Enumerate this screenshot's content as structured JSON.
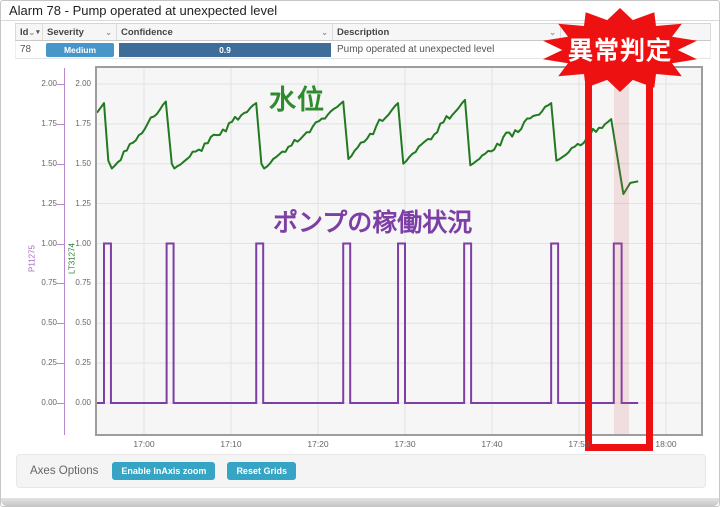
{
  "window": {
    "title": "Alarm 78 - Pump operated at unexpected level"
  },
  "table": {
    "columns": {
      "id": "Id",
      "severity": "Severity",
      "confidence": "Confidence",
      "description": "Description"
    },
    "row": {
      "id": "78",
      "severity": "Medium",
      "confidence": "0.9",
      "description": "Pump operated at unexpected level"
    },
    "severity_color": "#4796ca",
    "confidence_color": "#3e6d9a"
  },
  "badge": {
    "label": "異常判定",
    "color": "#ee1111",
    "text_color": "#ffffff"
  },
  "annotations": {
    "water_level": "水位",
    "pump_status": "ポンプの稼働状況"
  },
  "footer": {
    "label": "Axes Options",
    "buttons": {
      "inaxis_zoom": "Enable InAxis zoom",
      "reset_grids": "Reset Grids"
    },
    "button_color": "#35a4c5"
  },
  "chart_data": {
    "type": "line",
    "x_axis": {
      "tick_labels": [
        "17:00",
        "17:10",
        "17:20",
        "17:30",
        "17:40",
        "17:50",
        "18:00"
      ],
      "tick_interval_minutes": 10,
      "range_minutes_from_1700": [
        -5.4,
        64
      ]
    },
    "y_axes": [
      {
        "tag": "P11275",
        "color": "#a86bc6",
        "tick_labels": [
          "2.00",
          "1.75",
          "1.50",
          "1.25",
          "1.00",
          "0.75",
          "0.50",
          "0.25",
          "0.00"
        ],
        "range": [
          0,
          2.1
        ]
      },
      {
        "tag": "LT31274",
        "color": "#2e7d32",
        "tick_labels": [
          "2.00",
          "1.75",
          "1.50",
          "1.25",
          "1.00",
          "0.75",
          "0.50",
          "0.25",
          "0.00"
        ],
        "range": [
          0,
          2.1
        ]
      }
    ],
    "grid": true,
    "series": [
      {
        "tag": "LT31274",
        "label": "水位",
        "color": "#217a21",
        "type": "sawtooth-line",
        "points_minutes_value": [
          [
            -5.4,
            1.82
          ],
          [
            -4.6,
            1.88
          ],
          [
            -4.1,
            1.52
          ],
          [
            -3.7,
            1.47
          ],
          [
            2.5,
            1.89
          ],
          [
            3.2,
            1.5
          ],
          [
            3.5,
            1.47
          ],
          [
            12.9,
            1.88
          ],
          [
            13.5,
            1.5
          ],
          [
            13.8,
            1.47
          ],
          [
            22.9,
            1.89
          ],
          [
            23.5,
            1.53
          ],
          [
            29.2,
            1.88
          ],
          [
            29.8,
            1.5
          ],
          [
            36.9,
            1.9
          ],
          [
            37.5,
            1.49
          ],
          [
            46.8,
            1.88
          ],
          [
            47.4,
            1.52
          ],
          [
            53.7,
            1.78
          ],
          [
            55.1,
            1.31
          ],
          [
            55.9,
            1.38
          ],
          [
            56.8,
            1.39
          ]
        ]
      },
      {
        "tag": "P11275",
        "label": "ポンプの稼働状況",
        "color": "#7d3fa5",
        "type": "pulse",
        "baseline_value": 0.0,
        "pulse_value": 1.0,
        "domain_minutes": [
          -5.4,
          56.8
        ],
        "pulses_minutes": [
          [
            -4.6,
            -3.8
          ],
          [
            2.6,
            3.4
          ],
          [
            12.9,
            13.7
          ],
          [
            22.9,
            23.7
          ],
          [
            29.2,
            30.0
          ],
          [
            36.8,
            37.6
          ],
          [
            46.8,
            47.6
          ],
          [
            54.0,
            54.9
          ]
        ]
      }
    ],
    "anomaly": {
      "band_minutes": [
        54.0,
        55.8
      ],
      "box_minutes": [
        50.7,
        58.5
      ],
      "label": "異常判定"
    }
  }
}
